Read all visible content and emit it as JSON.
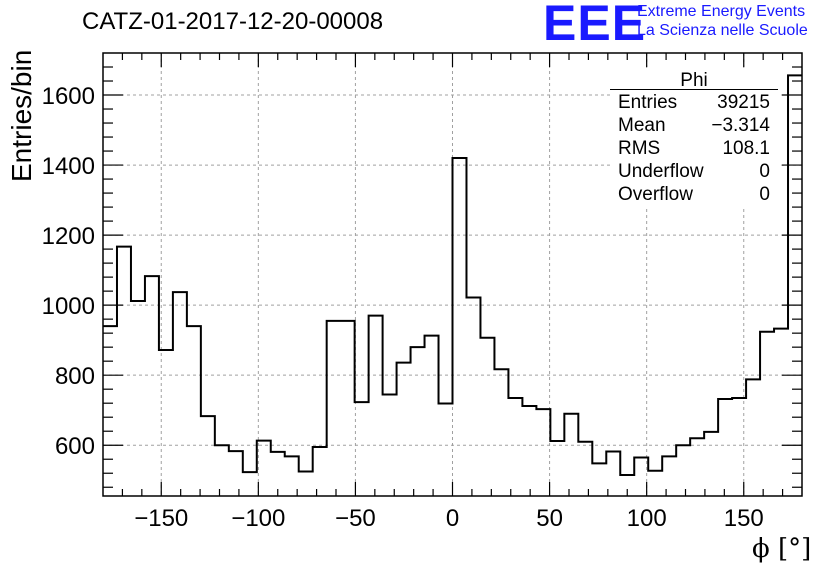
{
  "title": "CATZ-01-2017-12-20-00008",
  "logo": {
    "mark": "EEE",
    "line1": "Extreme Energy Events",
    "line2": "La Scienza nelle Scuole"
  },
  "stats_box": {
    "title": "Phi",
    "rows": [
      {
        "key": "Entries",
        "value": "39215"
      },
      {
        "key": "Mean",
        "value": "−3.314"
      },
      {
        "key": "RMS",
        "value": "108.1"
      },
      {
        "key": "Underflow",
        "value": "0"
      },
      {
        "key": "Overflow",
        "value": "0"
      }
    ]
  },
  "chart_data": {
    "type": "histogram-step",
    "title": "CATZ-01-2017-12-20-00008",
    "xlabel": "ϕ [°]",
    "ylabel": "Entries/bin",
    "xlim": [
      -180,
      180
    ],
    "ylim": [
      455,
      1720
    ],
    "grid": true,
    "bin_width": 7.2,
    "x_ticks": [
      -150,
      -100,
      -50,
      0,
      50,
      100,
      150
    ],
    "y_ticks": [
      600,
      800,
      1000,
      1200,
      1400,
      1600
    ],
    "x_tick_labels": [
      "−150",
      "−100",
      "−50",
      "0",
      "50",
      "100",
      "150"
    ],
    "y_tick_labels": [
      "600",
      "800",
      "1000",
      "1200",
      "1400",
      "1600"
    ],
    "values": [
      940,
      1167,
      1012,
      1083,
      872,
      1037,
      940,
      683,
      600,
      583,
      523,
      613,
      581,
      568,
      525,
      595,
      955,
      955,
      723,
      970,
      745,
      836,
      880,
      913,
      719,
      1420,
      1022,
      907,
      817,
      735,
      712,
      703,
      612,
      690,
      610,
      548,
      582,
      515,
      565,
      527,
      568,
      600,
      620,
      638,
      732,
      735,
      788,
      924,
      933,
      1656
    ]
  }
}
